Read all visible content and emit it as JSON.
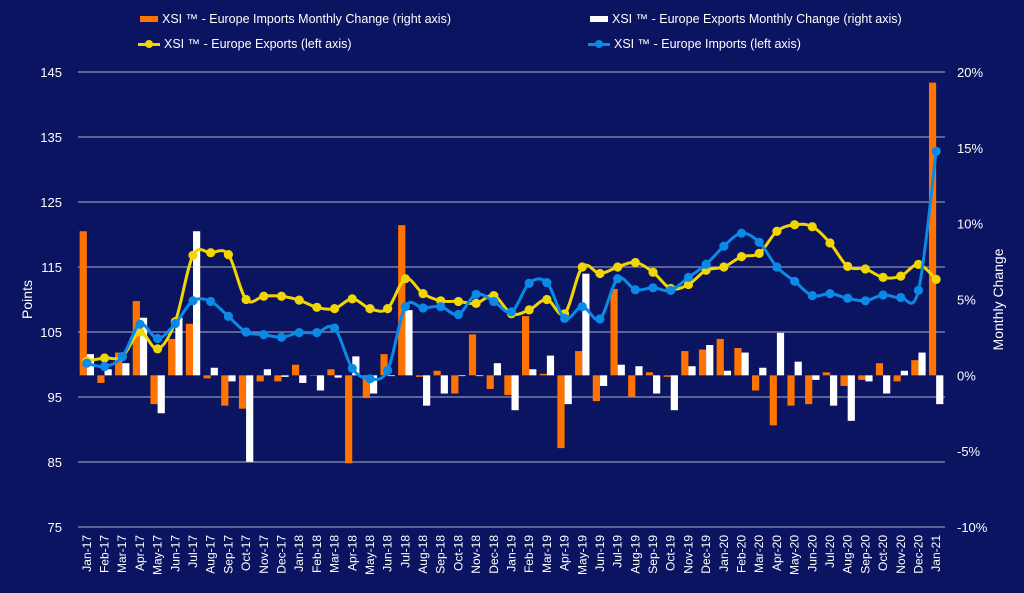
{
  "chart_data": {
    "type": "bar+line",
    "grid": true,
    "legend_position": "top",
    "ylabel": "Points",
    "y2label": "Monthly Change",
    "ylim": [
      75,
      145
    ],
    "yticks": [
      "145",
      "135",
      "125",
      "115",
      "105",
      "95",
      "85",
      "75"
    ],
    "y2lim": [
      -10,
      20
    ],
    "y2ticks": [
      "20%",
      "15%",
      "10%",
      "5%",
      "0%",
      "-5%",
      "-10%"
    ],
    "categories": [
      "Jan-17",
      "Feb-17",
      "Mar-17",
      "Apr-17",
      "May-17",
      "Jun-17",
      "Jul-17",
      "Aug-17",
      "Sep-17",
      "Oct-17",
      "Nov-17",
      "Dec-17",
      "Jan-18",
      "Feb-18",
      "Mar-18",
      "Apr-18",
      "May-18",
      "Jun-18",
      "Jul-18",
      "Aug-18",
      "Sep-18",
      "Oct-18",
      "Nov-18",
      "Dec-18",
      "Jan-19",
      "Feb-19",
      "Mar-19",
      "Apr-19",
      "May-19",
      "Jun-19",
      "Jul-19",
      "Aug-19",
      "Sep-19",
      "Oct-19",
      "Nov-19",
      "Dec-19",
      "Jan-20",
      "Feb-20",
      "Mar-20",
      "Apr-20",
      "May-20",
      "Jun-20",
      "Jul-20",
      "Aug-20",
      "Sep-20",
      "Oct-20",
      "Nov-20",
      "Dec-20",
      "Jan-21"
    ],
    "series": [
      {
        "name": "XSI ™ - Europe Imports Monthly Change (right axis)",
        "type": "bar",
        "axis": "right",
        "color": "#ff7300",
        "values": [
          9.5,
          -0.5,
          1.5,
          4.9,
          -1.9,
          2.4,
          3.4,
          -0.2,
          -2.0,
          -2.2,
          -0.4,
          -0.4,
          0.7,
          0.0,
          0.4,
          -5.8,
          -1.5,
          1.4,
          9.9,
          -0.1,
          0.3,
          -1.2,
          2.7,
          -0.9,
          -1.3,
          3.9,
          0.1,
          -4.8,
          1.6,
          -1.7,
          5.7,
          -1.4,
          0.2,
          -0.1,
          1.6,
          1.7,
          2.4,
          1.8,
          -1.0,
          -3.3,
          -2.0,
          -1.9,
          0.2,
          -0.7,
          -0.3,
          0.8,
          -0.4,
          1.0,
          19.3
        ]
      },
      {
        "name": "XSI ™ - Europe Exports Monthly Change (right axis)",
        "type": "bar",
        "axis": "right",
        "color": "#ffffff",
        "values": [
          1.4,
          0.4,
          0.8,
          3.8,
          -2.5,
          3.8,
          9.5,
          0.5,
          -0.4,
          -5.7,
          0.4,
          -0.1,
          -0.5,
          -1.0,
          -0.15,
          1.25,
          -1.2,
          -0.05,
          4.3,
          -2.0,
          -1.2,
          -0.05,
          -0.05,
          0.8,
          -2.3,
          0.4,
          1.3,
          -1.9,
          6.7,
          -0.7,
          0.7,
          0.6,
          -1.2,
          -2.3,
          0.6,
          2.0,
          0.3,
          1.5,
          0.5,
          2.8,
          0.9,
          -0.3,
          -2.0,
          -3.0,
          -0.4,
          -1.2,
          0.3,
          1.5,
          -1.9
        ]
      },
      {
        "name": "XSI ™ - Europe Exports (left axis)",
        "type": "line",
        "axis": "left",
        "color": "#f2d600",
        "values": [
          100.5,
          101.0,
          101.2,
          105.0,
          102.4,
          106.6,
          116.8,
          117.2,
          116.9,
          110.0,
          110.5,
          110.5,
          109.9,
          108.8,
          108.6,
          110.1,
          108.6,
          108.6,
          113.2,
          110.9,
          109.8,
          109.7,
          109.4,
          110.6,
          107.8,
          108.4,
          110.0,
          107.8,
          115.0,
          114.0,
          115.0,
          115.7,
          114.2,
          111.7,
          112.3,
          114.5,
          115.0,
          116.6,
          117.1,
          120.5,
          121.5,
          121.2,
          118.7,
          115.1,
          114.7,
          113.4,
          113.6,
          115.4,
          113.1
        ]
      },
      {
        "name": "XSI ™ - Europe Imports (left axis)",
        "type": "line",
        "axis": "left",
        "color": "#0a8ae6",
        "values": [
          100.2,
          99.7,
          101.2,
          106.2,
          104.0,
          106.3,
          109.8,
          109.7,
          107.4,
          105.0,
          104.6,
          104.2,
          104.9,
          104.9,
          105.6,
          99.4,
          97.8,
          99.1,
          108.9,
          108.7,
          108.9,
          107.7,
          110.8,
          109.7,
          108.1,
          112.5,
          112.6,
          107.1,
          108.9,
          107.0,
          113.2,
          111.5,
          111.8,
          111.4,
          113.4,
          115.4,
          118.2,
          120.2,
          118.8,
          115.0,
          112.8,
          110.6,
          110.9,
          110.2,
          109.8,
          110.7,
          110.3,
          111.4,
          132.8
        ]
      }
    ]
  }
}
